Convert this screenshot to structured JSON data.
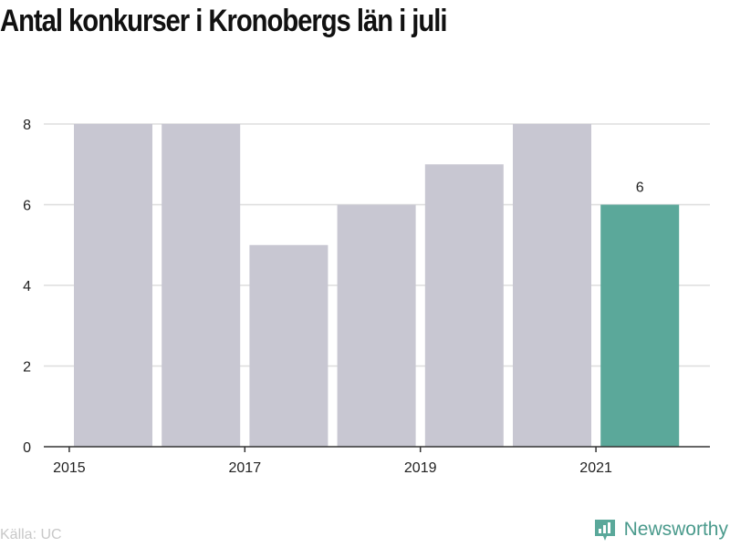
{
  "title": "Antal konkurser i Kronobergs län i juli",
  "source": "Källa: UC",
  "brand": {
    "name": "Newsworthy",
    "icon": "newsworthy-logo-icon",
    "color": "#5aa89a"
  },
  "colors": {
    "bar": "#c8c7d2",
    "highlight": "#5ba89a",
    "grid": "#dddddd",
    "axis": "#333333",
    "text": "#222222"
  },
  "chart_data": {
    "type": "bar",
    "x": [
      2015,
      2016,
      2017,
      2018,
      2019,
      2020,
      2021
    ],
    "values": [
      8,
      8,
      5,
      6,
      7,
      8,
      6
    ],
    "highlight_index": 6,
    "data_labels": [
      {
        "index": 6,
        "text": "6"
      }
    ],
    "x_ticks": [
      "2015",
      "2017",
      "2019",
      "2021"
    ],
    "y_ticks": [
      "0",
      "2",
      "4",
      "6",
      "8"
    ],
    "ylim": [
      0,
      8
    ],
    "grid": true,
    "legend": "none",
    "title": "Antal konkurser i Kronobergs län i juli",
    "xlabel": "",
    "ylabel": ""
  }
}
